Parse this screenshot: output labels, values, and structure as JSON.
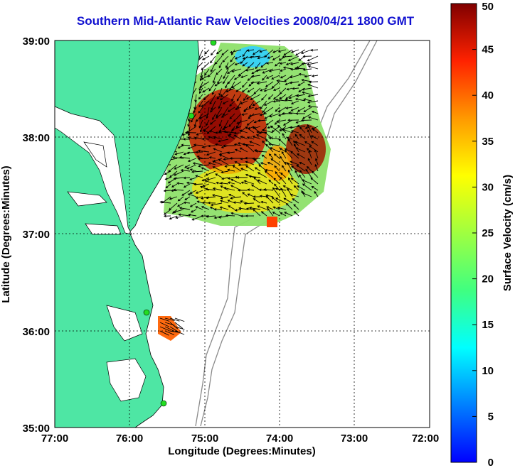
{
  "title": "Southern Mid-Atlantic Raw Velocities 2008/04/21 1800 GMT",
  "x_axis": {
    "label": "Longitude (Degrees:Minutes)",
    "ticks": [
      "77:00",
      "76:00",
      "75:00",
      "74:00",
      "73:00",
      "72:00"
    ],
    "range": [
      -77,
      -72
    ]
  },
  "y_axis": {
    "label": "Latitude (Degrees:Minutes)",
    "ticks": [
      "39:00",
      "38:00",
      "37:00",
      "36:00",
      "35:00"
    ],
    "range": [
      35,
      39
    ]
  },
  "colorbar": {
    "label": "Surface Velocity (cm/s)",
    "ticks": [
      "0",
      "5",
      "10",
      "15",
      "20",
      "25",
      "30",
      "35",
      "40",
      "45",
      "50"
    ],
    "range": [
      0,
      50
    ]
  },
  "colors": {
    "land": "#4ee6a4",
    "title": "#1010d0",
    "stations": "#22dd22",
    "bathymetry": "#8a8a8a"
  },
  "chart_data": {
    "type": "heatmap",
    "grid": true,
    "stations": [
      {
        "lon": -74.95,
        "lat": 38.98
      },
      {
        "lon": -75.15,
        "lat": 38.22
      },
      {
        "lon": -75.52,
        "lat": 36.18
      },
      {
        "lon": -75.47,
        "lat": 35.28
      }
    ],
    "velocity_regions": [
      {
        "lon": -75.0,
        "lat": 38.2,
        "speed": 45
      },
      {
        "lon": -74.4,
        "lat": 38.8,
        "speed": 12
      },
      {
        "lon": -74.2,
        "lat": 37.6,
        "speed": 27
      },
      {
        "lon": -73.7,
        "lat": 37.9,
        "speed": 44
      },
      {
        "lon": -75.3,
        "lat": 37.5,
        "speed": 25
      },
      {
        "lon": -74.0,
        "lat": 37.1,
        "speed": 40
      },
      {
        "lon": -75.4,
        "lat": 36.2,
        "speed": 38
      }
    ]
  }
}
